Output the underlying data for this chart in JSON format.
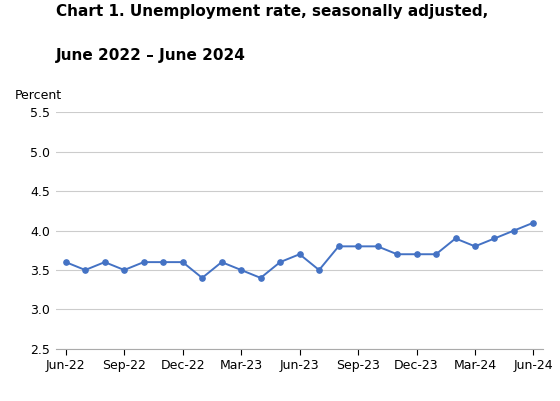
{
  "title_line1": "Chart 1. Unemployment rate, seasonally adjusted,",
  "title_line2": "June 2022 – June 2024",
  "ylabel": "Percent",
  "line_color": "#4472C4",
  "marker_color": "#4472C4",
  "background_color": "#ffffff",
  "ylim": [
    2.5,
    5.5
  ],
  "yticks": [
    2.5,
    3.0,
    3.5,
    4.0,
    4.5,
    5.0,
    5.5
  ],
  "x_tick_labels": [
    "Jun-22",
    "Sep-22",
    "Dec-22",
    "Mar-23",
    "Jun-23",
    "Sep-23",
    "Dec-23",
    "Mar-24",
    "Jun-24"
  ],
  "x_tick_positions": [
    0,
    3,
    6,
    9,
    12,
    15,
    18,
    21,
    24
  ],
  "values": [
    3.6,
    3.5,
    3.6,
    3.5,
    3.6,
    3.6,
    3.6,
    3.4,
    3.6,
    3.5,
    3.4,
    3.6,
    3.7,
    3.5,
    3.8,
    3.8,
    3.8,
    3.7,
    3.7,
    3.7,
    3.9,
    3.8,
    3.9,
    4.0,
    4.1
  ],
  "grid_color": "#cccccc",
  "spine_color": "#aaaaaa",
  "title_fontsize": 11,
  "tick_fontsize": 9,
  "ylabel_fontsize": 9
}
